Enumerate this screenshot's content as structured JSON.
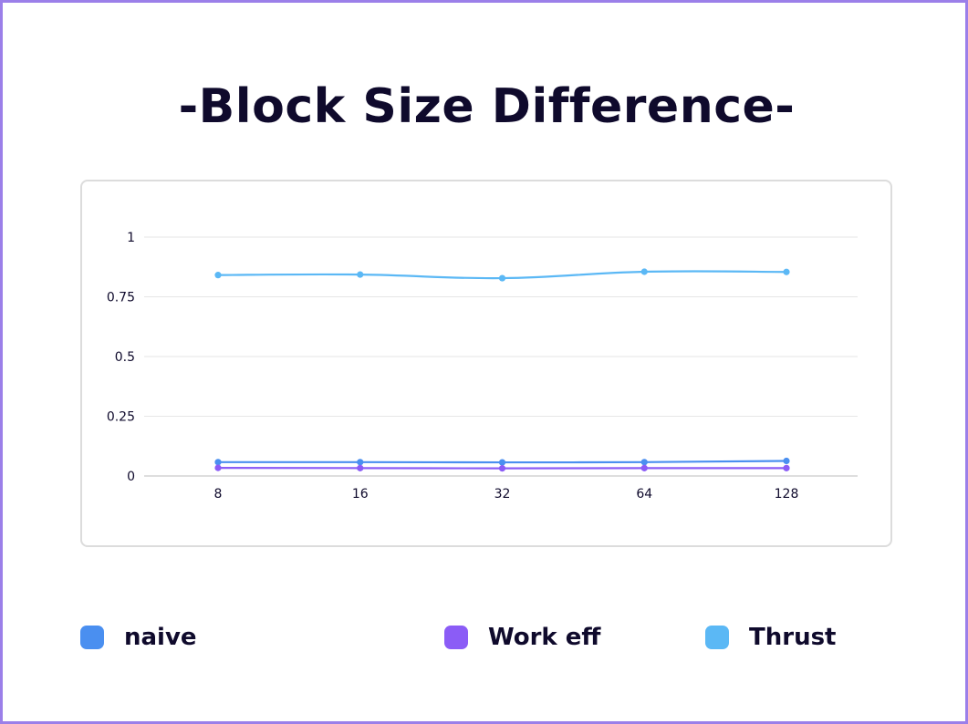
{
  "title": "-Block Size Difference-",
  "colors": {
    "naive": "#4a8ff0",
    "work_eff": "#8b5cf6",
    "thrust": "#5bb8f5",
    "text": "#0f0a2c",
    "grid": "#e6e6e6",
    "frame": "#9b7fe9"
  },
  "chart_data": {
    "type": "line",
    "title": "-Block Size Difference-",
    "xlabel": "",
    "ylabel": "",
    "categories": [
      "8",
      "16",
      "32",
      "64",
      "128"
    ],
    "ylim": [
      0,
      1
    ],
    "yticks": [
      "0",
      "0.25",
      "0.5",
      "0.75",
      "1"
    ],
    "grid": true,
    "legend_position": "bottom",
    "series": [
      {
        "name": "naive",
        "color": "#4a8ff0",
        "values": [
          0.058,
          0.058,
          0.057,
          0.058,
          0.063
        ]
      },
      {
        "name": "Work eff",
        "color": "#8b5cf6",
        "values": [
          0.034,
          0.033,
          0.032,
          0.033,
          0.033
        ]
      },
      {
        "name": "Thrust",
        "color": "#5bb8f5",
        "values": [
          0.841,
          0.843,
          0.828,
          0.855,
          0.854
        ]
      }
    ]
  },
  "legend": [
    {
      "label": "naive",
      "color": "#4a8ff0"
    },
    {
      "label": "Work eff",
      "color": "#8b5cf6"
    },
    {
      "label": "Thrust",
      "color": "#5bb8f5"
    }
  ]
}
